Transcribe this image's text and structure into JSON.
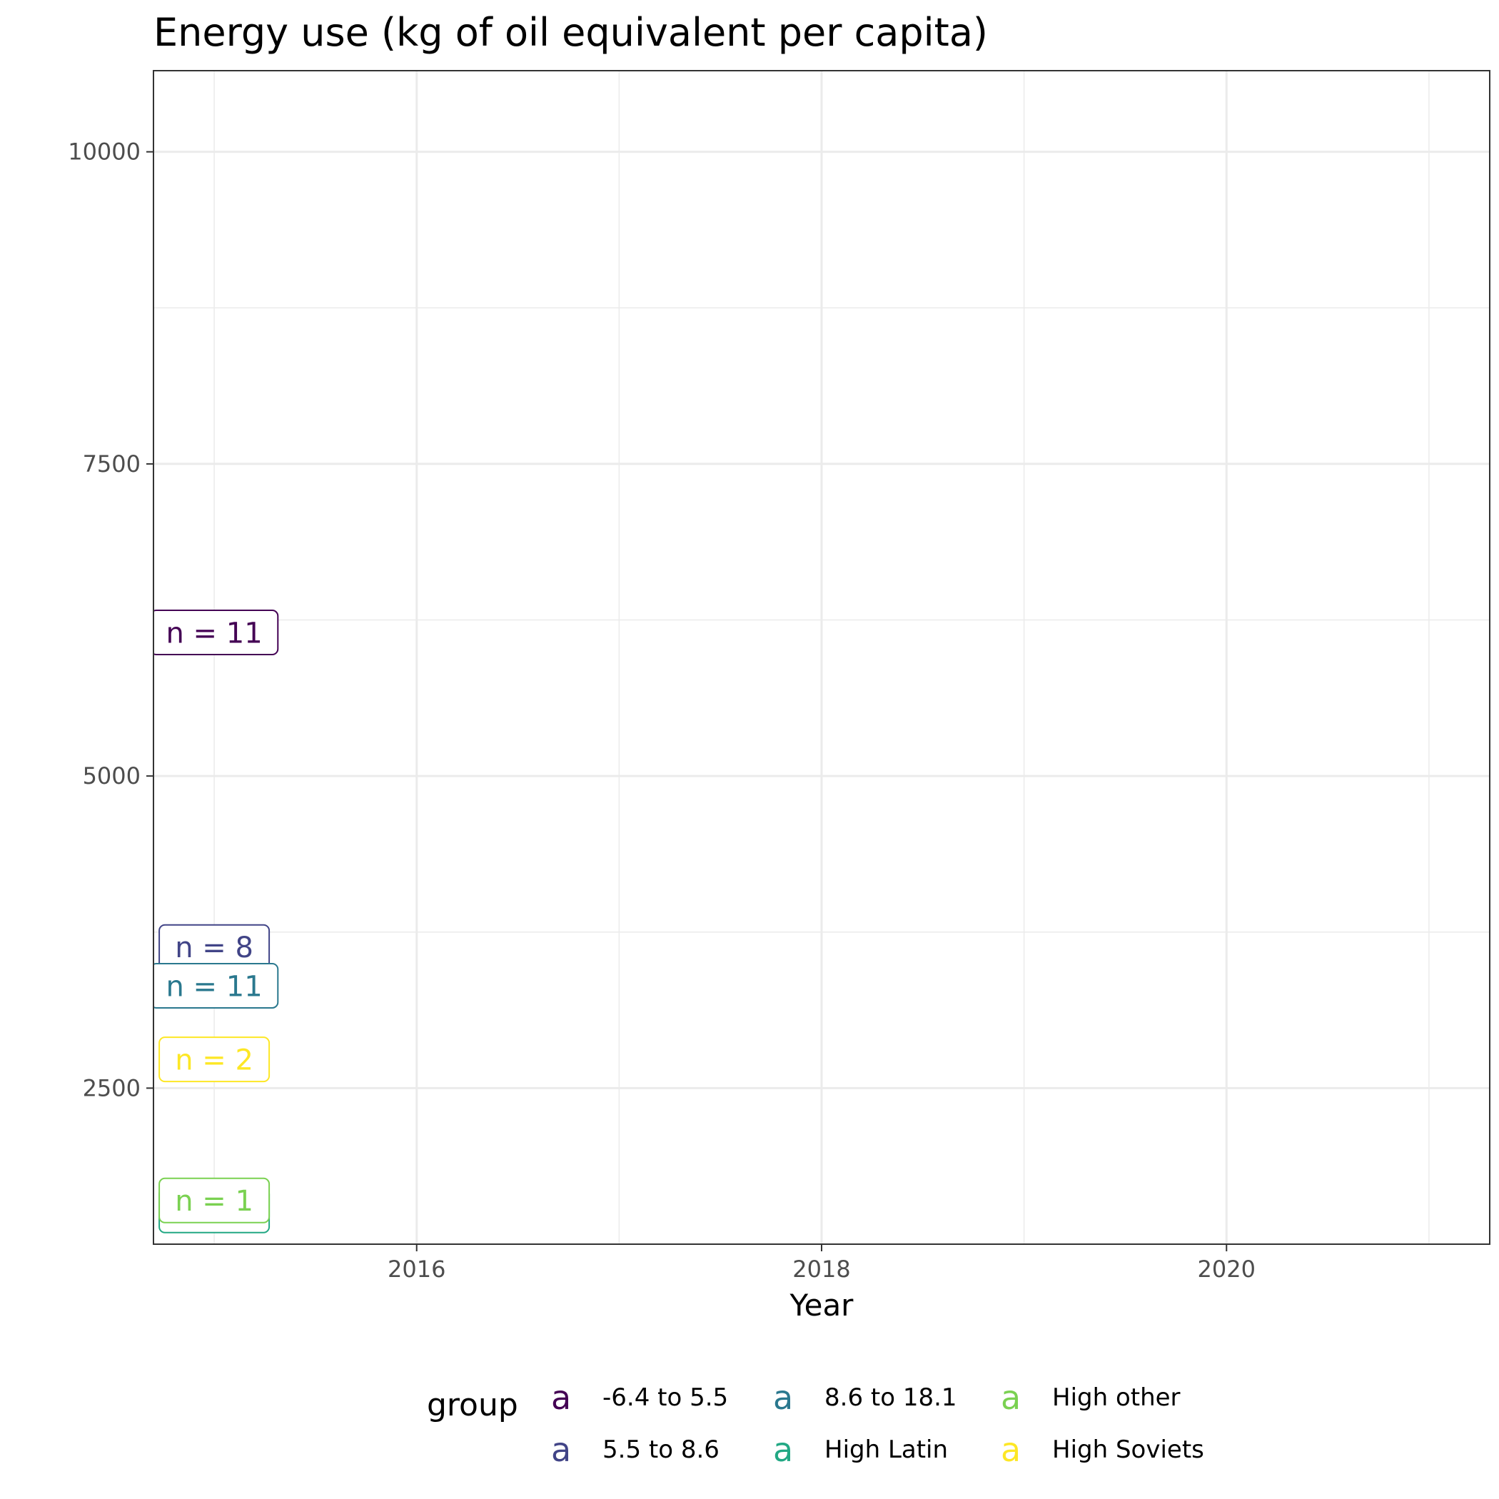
{
  "chart_data": {
    "type": "label",
    "title": "Energy use (kg of oil equivalent per capita)",
    "xlabel": "Year",
    "ylabel": "",
    "xlim": [
      2014.7,
      2021.3
    ],
    "ylim": [
      1250,
      10650
    ],
    "x_ticks": [
      2016,
      2018,
      2020
    ],
    "x_minor": [
      2015,
      2017,
      2019,
      2021
    ],
    "y_ticks": [
      2500,
      5000,
      7500,
      10000
    ],
    "y_minor": [
      1250,
      3750,
      6250,
      8750
    ],
    "grid": true,
    "legend": {
      "title": "group",
      "position": "bottom",
      "key_glyph": "a",
      "entries": [
        {
          "name": "-6.4 to 5.5",
          "color": "#440154"
        },
        {
          "name": "5.5 to 8.6",
          "color": "#414487"
        },
        {
          "name": "8.6 to 18.1",
          "color": "#2A788E"
        },
        {
          "name": "High Latin",
          "color": "#22A884"
        },
        {
          "name": "High other",
          "color": "#7AD151"
        },
        {
          "name": "High Soviets",
          "color": "#FDE725"
        }
      ]
    },
    "series": [
      {
        "name": "-6.4 to 5.5",
        "color": "#440154",
        "points": [
          {
            "x": 2015,
            "y": 6150,
            "label": "n = 11"
          }
        ]
      },
      {
        "name": "5.5 to 8.6",
        "color": "#414487",
        "points": [
          {
            "x": 2015,
            "y": 3630,
            "label": "n = 8"
          }
        ]
      },
      {
        "name": "8.6 to 18.1",
        "color": "#2A788E",
        "points": [
          {
            "x": 2015,
            "y": 3320,
            "label": "n = 11"
          }
        ]
      },
      {
        "name": "High Latin",
        "color": "#22A884",
        "points": [
          {
            "x": 2015,
            "y": 1520,
            "label": ""
          }
        ]
      },
      {
        "name": "High other",
        "color": "#7AD151",
        "points": [
          {
            "x": 2015,
            "y": 1600,
            "label": "n = 1"
          }
        ]
      },
      {
        "name": "High Soviets",
        "color": "#FDE725",
        "points": [
          {
            "x": 2015,
            "y": 2730,
            "label": "n = 2"
          }
        ]
      }
    ]
  }
}
